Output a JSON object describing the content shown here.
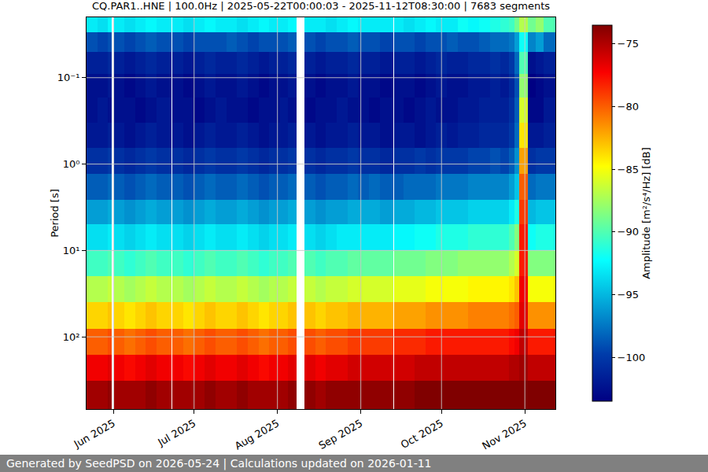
{
  "chart_data": {
    "type": "heatmap",
    "title": "CQ.PAR1..HNE | 100.0Hz | 2025-05-22T00:00:03 - 2025-11-12T08:30:00 | 7683 segments",
    "y_label": "Period [s]",
    "colorbar_label": "Amplitude [m²/s⁴/Hz] [dB]",
    "annotations": [
      "Generated by SeedPSD on 2026-05-24 | Calculations updated on 2026-01-11"
    ],
    "log": "y",
    "grid": true,
    "xlim": [
      "2025-05-22 00:00:03",
      "2025-11-12 08:30:00"
    ],
    "ylim": [
      686,
      0.02
    ],
    "zlim": [
      -103.5,
      -73.5
    ],
    "xticks": [
      {
        "value": "2025-06-01",
        "label": "Jun 2025"
      },
      {
        "value": "2025-07-01",
        "label": "Jul 2025"
      },
      {
        "value": "2025-08-01",
        "label": "Aug 2025"
      },
      {
        "value": "2025-09-01",
        "label": "Sep 2025"
      },
      {
        "value": "2025-10-01",
        "label": "Oct 2025"
      },
      {
        "value": "2025-11-01",
        "label": "Nov 2025"
      }
    ],
    "yticks": [
      {
        "value": 0.1,
        "label": "10⁻¹"
      },
      {
        "value": 1,
        "label": "10⁰"
      },
      {
        "value": 10,
        "label": "10¹"
      },
      {
        "value": 100,
        "label": "10²"
      }
    ],
    "zticks": [
      -100,
      -95,
      -90,
      -85,
      -80,
      -75
    ],
    "x": [
      "2025-05-22 00:00:03",
      "2025-05-26",
      "2025-05-30",
      "2025-05-31 12:00",
      "2025-06-01 06:00",
      "2025-06-05",
      "2025-06-09",
      "2025-06-13",
      "2025-06-17",
      "2025-06-22 12:00",
      "2025-06-23",
      "2025-06-27",
      "2025-07-01",
      "2025-07-05",
      "2025-07-09",
      "2025-07-13",
      "2025-07-17",
      "2025-07-21",
      "2025-07-25",
      "2025-07-29",
      "2025-08-02",
      "2025-08-05",
      "2025-08-08",
      "2025-08-11",
      "2025-08-15",
      "2025-08-19",
      "2025-08-23",
      "2025-08-27",
      "2025-08-31",
      "2025-09-04",
      "2025-09-08",
      "2025-09-13",
      "2025-09-13 12:00",
      "2025-09-17",
      "2025-09-21",
      "2025-09-25",
      "2025-09-29",
      "2025-10-03",
      "2025-10-07",
      "2025-10-11",
      "2025-10-15",
      "2025-10-19",
      "2025-10-23",
      "2025-10-26",
      "2025-10-28",
      "2025-10-30",
      "2025-11-02",
      "2025-11-05",
      "2025-11-08",
      "2025-11-12 08:30:00"
    ],
    "y": [
      0.02,
      0.03,
      0.05,
      0.09,
      0.17,
      0.33,
      0.65,
      1.3,
      2.6,
      5,
      10,
      20,
      40,
      80,
      160,
      320,
      686
    ],
    "z": [
      [
        -93,
        -93.5,
        -92.5,
        null,
        -93,
        -93.5,
        -93,
        -92.5,
        -93,
        null,
        -93,
        -93.5,
        -93,
        -92.5,
        -93,
        -93,
        -93.5,
        -93,
        -92.5,
        -93,
        -93,
        -92.5,
        null,
        -93,
        -93,
        -93.5,
        -93,
        -92.5,
        -93,
        -93,
        -93,
        null,
        -93,
        -93.5,
        -93,
        -92.5,
        -93,
        -93,
        -92,
        -92.5,
        -92,
        -91.5,
        -91,
        -90.5,
        -89,
        -87,
        -89,
        -88,
        -90
      ],
      [
        -99,
        -99.5,
        -99,
        null,
        -99,
        -99.5,
        -99,
        -98.5,
        -99,
        null,
        -99,
        -99.5,
        -99,
        -99,
        -99,
        -98.5,
        -99,
        -99.5,
        -99,
        -99,
        -99,
        -98.5,
        null,
        -99,
        -99.5,
        -99,
        -99,
        -98.5,
        -99,
        -99,
        -99.5,
        null,
        -99,
        -99,
        -99.5,
        -99,
        -99,
        -98.5,
        -99,
        -99,
        -98.5,
        -98,
        -98,
        -97.5,
        -96,
        -92,
        -97,
        -96,
        -98
      ],
      [
        -101.5,
        -101.5,
        -101,
        null,
        -101.5,
        -102,
        -101.5,
        -101,
        -101.5,
        null,
        -101.5,
        -102,
        -101.5,
        -101,
        -101.5,
        -101.5,
        -101,
        -101.5,
        -102,
        -101.5,
        -101.5,
        -101,
        null,
        -101.5,
        -102,
        -101.5,
        -101.5,
        -101,
        -101.5,
        -101.5,
        -102,
        null,
        -101.5,
        -101.5,
        -102,
        -101.5,
        -101,
        -101.5,
        -101.5,
        -101,
        -101,
        -100.5,
        -101,
        -100,
        -98,
        -90,
        -102.5,
        -102,
        -101.5
      ],
      [
        -102.5,
        -102.5,
        -102,
        null,
        -102.5,
        -103,
        -102.5,
        -102,
        -102.5,
        null,
        -102.5,
        -103,
        -102.5,
        -102,
        -102.5,
        -102.5,
        -102,
        -102.5,
        -103,
        -102.5,
        -102.5,
        -102,
        null,
        -102.5,
        -103,
        -102.5,
        -102.5,
        -102,
        -102.5,
        -102.5,
        -103,
        null,
        -102.5,
        -102.5,
        -103,
        -102.5,
        -102,
        -102.5,
        -102.5,
        -102,
        -102,
        -101.5,
        -102,
        -101,
        -99,
        -88,
        -103.5,
        -103,
        -102.5
      ],
      [
        -102.5,
        -102,
        -102.5,
        null,
        -102.5,
        -102.5,
        -103,
        -102.5,
        -102,
        null,
        -102.5,
        -102.5,
        -103,
        -102.5,
        -102,
        -102.5,
        -102.5,
        -103,
        -102.5,
        -102.5,
        -102,
        -102.5,
        null,
        -103,
        -102.5,
        -102.5,
        -102,
        -102.5,
        -102.5,
        -103,
        -102.5,
        null,
        -102.5,
        -103,
        -102.5,
        -102,
        -102.5,
        -102.5,
        -102,
        -102,
        -101.5,
        -101.5,
        -101.5,
        -100.5,
        -98.5,
        -86,
        -103,
        -103,
        -102
      ],
      [
        -102,
        -102,
        -101.5,
        null,
        -102,
        -102.5,
        -102,
        -101.5,
        -102,
        null,
        -102,
        -102.5,
        -102,
        -101.5,
        -102,
        -102,
        -101.5,
        -102,
        -102.5,
        -102,
        -102,
        -101.5,
        null,
        -102,
        -102.5,
        -102,
        -102,
        -101.5,
        -102,
        -102,
        -102.5,
        null,
        -102,
        -102,
        -102.5,
        -102,
        -101.5,
        -102,
        -101.5,
        -101.5,
        -101,
        -101,
        -101,
        -100,
        -98,
        -84,
        -102,
        -102,
        -101.5
      ],
      [
        -100.5,
        -100.5,
        -100,
        null,
        -100.5,
        -101,
        -100.5,
        -100,
        -100.5,
        null,
        -100.5,
        -101,
        -100.5,
        -100,
        -100.5,
        -100.5,
        -100,
        -100.5,
        -101,
        -100.5,
        -100.5,
        -100,
        null,
        -100.5,
        -101,
        -100.5,
        -100.5,
        -100,
        -100.5,
        -100.5,
        -101,
        null,
        -100.5,
        -100.5,
        -100,
        -100.5,
        -100,
        -100,
        -100,
        -99.5,
        -99.5,
        -99,
        -99.5,
        -98.5,
        -96.5,
        -82,
        -100.5,
        -100,
        -100
      ],
      [
        -98.5,
        -98.5,
        -98,
        null,
        -98.5,
        -99,
        -98.5,
        -98,
        -98.5,
        null,
        -98.5,
        -99,
        -98.5,
        -98,
        -98.5,
        -98.5,
        -98,
        -98.5,
        -99,
        -98.5,
        -98.5,
        -98,
        null,
        -98.5,
        -99,
        -98.5,
        -98.5,
        -98,
        -98.5,
        -98,
        -98.5,
        null,
        -98.5,
        -98,
        -98,
        -98,
        -97.5,
        -97.5,
        -97.5,
        -97,
        -97,
        -97,
        -97,
        -96,
        -94.5,
        -80,
        -98,
        -97.5,
        -97.5
      ],
      [
        -96,
        -96,
        -95.5,
        null,
        -96,
        -96.5,
        -96,
        -95.5,
        -96,
        null,
        -96,
        -96.5,
        -96,
        -95.5,
        -96,
        -96,
        -95.5,
        -96,
        -96.5,
        -96,
        -96,
        -95.5,
        null,
        -96,
        -96.5,
        -96,
        -96,
        -95.5,
        -95.5,
        -95.5,
        -96,
        null,
        -95.5,
        -95.5,
        -95,
        -95,
        -94.5,
        -94.5,
        -94.5,
        -94,
        -94,
        -94,
        -94,
        -93,
        -91.5,
        -79,
        -95,
        -94.5,
        -94.5
      ],
      [
        -93.5,
        -93.5,
        -93,
        null,
        -93.5,
        -94,
        -93.5,
        -93,
        -93.5,
        null,
        -93.5,
        -94,
        -93.5,
        -93,
        -93.5,
        -93.5,
        -93,
        -93.5,
        -94,
        -93.5,
        -93.5,
        -93,
        null,
        -93.5,
        -94,
        -93.5,
        -93,
        -93,
        -93,
        -93,
        -93,
        null,
        -92.5,
        -92.5,
        -92,
        -92,
        -91.5,
        -91.5,
        -91.5,
        -91,
        -91,
        -91,
        -91,
        -90,
        -88.5,
        -78,
        -92,
        -91.5,
        -91.5
      ],
      [
        -90.5,
        -90.5,
        -90,
        null,
        -90.5,
        -91,
        -90.5,
        -90,
        -90.5,
        null,
        -90.5,
        -91,
        -90.5,
        -90,
        -90.5,
        -90.5,
        -90,
        -90.5,
        -91,
        -90.5,
        -90.5,
        -90,
        null,
        -90,
        -90.5,
        -90,
        -90,
        -89.5,
        -89.5,
        -89.5,
        -89.5,
        null,
        -89,
        -89,
        -89,
        -88.5,
        -88.5,
        -88.5,
        -88,
        -88,
        -88,
        -88,
        -88,
        -87,
        -86,
        -78,
        -88.5,
        -88.5,
        -88.5
      ],
      [
        -87,
        -87,
        -86.5,
        null,
        -87,
        -87.5,
        -87,
        -86.5,
        -87,
        null,
        -87,
        -87.5,
        -87,
        -86.5,
        -87,
        -87,
        -86.5,
        -87,
        -87.5,
        -87,
        -87,
        -86.5,
        null,
        -86.5,
        -87,
        -86.5,
        -86.5,
        -86,
        -86,
        -86,
        -86,
        null,
        -85.5,
        -85.5,
        -85.5,
        -85,
        -85,
        -85,
        -85,
        -84.5,
        -84.5,
        -84.5,
        -84.5,
        -84,
        -83,
        -77,
        -85,
        -85,
        -85
      ],
      [
        -83.5,
        -83.5,
        -83,
        null,
        -83.5,
        -84,
        -83.5,
        -83,
        -83.5,
        null,
        -83.5,
        -84,
        -83.5,
        -83,
        -83.5,
        -83.5,
        -83,
        -83.5,
        -84,
        -83.5,
        -83.5,
        -83,
        null,
        -83,
        -83.5,
        -83,
        -83,
        -82.5,
        -82.5,
        -82.5,
        -82.5,
        null,
        -82,
        -82,
        -82,
        -81.5,
        -81.5,
        -81.5,
        -81.5,
        -81,
        -81,
        -81,
        -81,
        -80.5,
        -80,
        -76.5,
        -81.5,
        -81.5,
        -81.5
      ],
      [
        -80,
        -80,
        -79.5,
        null,
        -80,
        -80.5,
        -80,
        -79.5,
        -80,
        null,
        -80,
        -80.5,
        -80,
        -79.5,
        -80,
        -80,
        -79.5,
        -80,
        -80.5,
        -80,
        -80,
        -79.5,
        null,
        -79.5,
        -80,
        -79.5,
        -79.5,
        -79,
        -79,
        -79,
        -79,
        null,
        -78.5,
        -78.5,
        -78.5,
        -78,
        -78,
        -78,
        -78,
        -78,
        -78,
        -78,
        -78,
        -77.5,
        -77,
        -75.5,
        -78,
        -78,
        -78
      ],
      [
        -77,
        -77,
        -76.5,
        null,
        -77,
        -77.5,
        -77,
        -76.5,
        -77,
        null,
        -77,
        -77.5,
        -77,
        -76.5,
        -77,
        -77,
        -76.5,
        -77,
        -77.5,
        -77,
        -77,
        -76.5,
        null,
        -76.5,
        -77,
        -76.5,
        -76.5,
        -76,
        -76,
        -76,
        -76,
        null,
        -76,
        -76,
        -75.5,
        -75.5,
        -75.5,
        -75.5,
        -75.5,
        -75.5,
        -75.5,
        -75.5,
        -75.5,
        -75,
        -75,
        -74.5,
        -75.5,
        -75.5,
        -75.5
      ],
      [
        -74.5,
        -74.5,
        -74,
        null,
        -74.5,
        -74.5,
        -74.5,
        -74,
        -74.5,
        null,
        -74.5,
        -74.5,
        -74.5,
        -74,
        -74.5,
        -74.5,
        -74,
        -74.5,
        -74.5,
        -74.5,
        -74.5,
        -74,
        null,
        -74,
        -74.5,
        -74,
        -74,
        -74,
        -74,
        -74,
        -74,
        null,
        -74,
        -74,
        -73.5,
        -73.5,
        -73.5,
        -73.5,
        -73.5,
        -73.5,
        -73.5,
        -73.5,
        -73.5,
        -73.5,
        -73.5,
        -73.5,
        -73.5,
        -73.5,
        -73.5
      ]
    ]
  }
}
